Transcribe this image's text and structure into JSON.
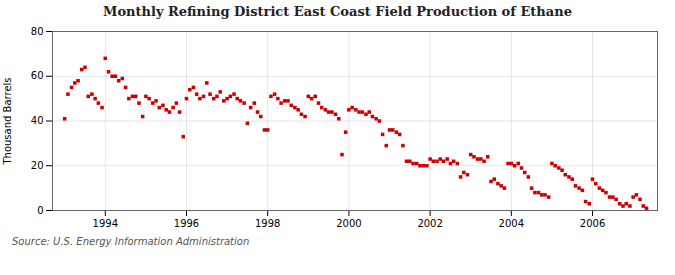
{
  "chart_data": {
    "type": "scatter",
    "title": "Monthly Refining District East Coast Field Production of Ethane",
    "ylabel": "Thousand Barrels",
    "source": "Source: U.S. Energy Information Administration",
    "color": "#cc0000",
    "marker": "square",
    "grid": true,
    "xlim": [
      1992.7,
      2007.6
    ],
    "ylim": [
      0,
      80
    ],
    "xticks": [
      1994,
      1996,
      1998,
      2000,
      2002,
      2004,
      2006
    ],
    "yticks": [
      0,
      20,
      40,
      60,
      80
    ],
    "x": [
      1993.0,
      1993.08,
      1993.17,
      1993.25,
      1993.33,
      1993.42,
      1993.5,
      1993.58,
      1993.67,
      1993.75,
      1993.83,
      1993.92,
      1994.0,
      1994.08,
      1994.17,
      1994.25,
      1994.33,
      1994.42,
      1994.5,
      1994.58,
      1994.67,
      1994.75,
      1994.83,
      1994.92,
      1995.0,
      1995.08,
      1995.17,
      1995.25,
      1995.33,
      1995.42,
      1995.5,
      1995.58,
      1995.67,
      1995.75,
      1995.83,
      1995.92,
      1996.0,
      1996.08,
      1996.17,
      1996.25,
      1996.33,
      1996.42,
      1996.5,
      1996.58,
      1996.67,
      1996.75,
      1996.83,
      1996.92,
      1997.0,
      1997.08,
      1997.17,
      1997.25,
      1997.33,
      1997.42,
      1997.5,
      1997.58,
      1997.67,
      1997.75,
      1997.83,
      1997.92,
      1998.0,
      1998.08,
      1998.17,
      1998.25,
      1998.33,
      1998.42,
      1998.5,
      1998.58,
      1998.67,
      1998.75,
      1998.83,
      1998.92,
      1999.0,
      1999.08,
      1999.17,
      1999.25,
      1999.33,
      1999.42,
      1999.5,
      1999.58,
      1999.67,
      1999.75,
      1999.83,
      1999.92,
      2000.0,
      2000.08,
      2000.17,
      2000.25,
      2000.33,
      2000.42,
      2000.5,
      2000.58,
      2000.67,
      2000.75,
      2000.83,
      2000.92,
      2001.0,
      2001.08,
      2001.17,
      2001.25,
      2001.33,
      2001.42,
      2001.5,
      2001.58,
      2001.67,
      2001.75,
      2001.83,
      2001.92,
      2002.0,
      2002.08,
      2002.17,
      2002.25,
      2002.33,
      2002.42,
      2002.5,
      2002.58,
      2002.67,
      2002.75,
      2002.83,
      2002.92,
      2003.0,
      2003.08,
      2003.17,
      2003.25,
      2003.33,
      2003.42,
      2003.5,
      2003.58,
      2003.67,
      2003.75,
      2003.83,
      2003.92,
      2004.0,
      2004.08,
      2004.17,
      2004.25,
      2004.33,
      2004.42,
      2004.5,
      2004.58,
      2004.67,
      2004.75,
      2004.83,
      2004.92,
      2005.0,
      2005.08,
      2005.17,
      2005.25,
      2005.33,
      2005.42,
      2005.5,
      2005.58,
      2005.67,
      2005.75,
      2005.83,
      2005.92,
      2006.0,
      2006.08,
      2006.17,
      2006.25,
      2006.33,
      2006.42,
      2006.5,
      2006.58,
      2006.67,
      2006.75,
      2006.83,
      2006.92,
      2007.0,
      2007.08,
      2007.17,
      2007.25,
      2007.33
    ],
    "values": [
      41,
      52,
      55,
      57,
      58,
      63,
      64,
      51,
      52,
      50,
      48,
      46,
      68,
      62,
      60,
      60,
      58,
      59,
      55,
      50,
      51,
      51,
      48,
      42,
      51,
      50,
      48,
      49,
      46,
      47,
      45,
      44,
      46,
      48,
      44,
      33,
      50,
      54,
      55,
      52,
      50,
      51,
      57,
      52,
      50,
      51,
      53,
      49,
      50,
      51,
      52,
      50,
      49,
      48,
      39,
      46,
      48,
      44,
      42,
      36,
      36,
      51,
      52,
      50,
      48,
      49,
      49,
      47,
      46,
      45,
      43,
      42,
      51,
      50,
      51,
      48,
      46,
      45,
      44,
      44,
      43,
      41,
      25,
      35,
      45,
      46,
      45,
      44,
      44,
      43,
      44,
      42,
      41,
      40,
      34,
      29,
      36,
      36,
      35,
      34,
      29,
      22,
      22,
      21,
      21,
      20,
      20,
      20,
      23,
      22,
      22,
      23,
      22,
      23,
      21,
      22,
      21,
      15,
      17,
      16,
      25,
      24,
      23,
      23,
      22,
      24,
      13,
      14,
      12,
      11,
      10,
      21,
      21,
      20,
      21,
      19,
      17,
      15,
      10,
      8,
      8,
      7,
      7,
      6,
      21,
      20,
      19,
      18,
      16,
      15,
      14,
      11,
      10,
      9,
      4,
      3,
      14,
      12,
      10,
      9,
      8,
      6,
      6,
      5,
      3,
      2,
      3,
      2,
      6,
      7,
      5,
      2,
      1
    ]
  }
}
